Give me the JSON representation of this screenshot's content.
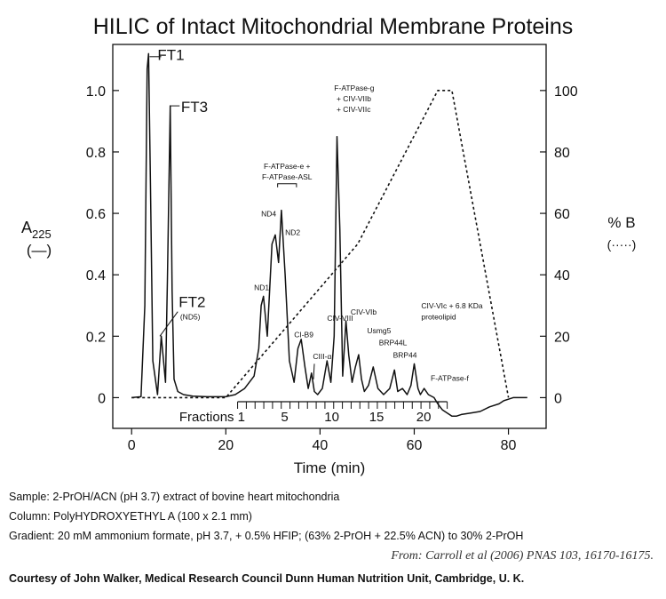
{
  "title": "HILIC of Intact Mitochondrial Membrane Proteins",
  "captions": {
    "sample": "Sample: 2-PrOH/ACN (pH 3.7) extract of bovine heart mitochondria",
    "column": "Column: PolyHYDROXYETHYL A (100 x 2.1 mm)",
    "gradient": "Gradient: 20 mM ammonium formate, pH 3.7, + 0.5% HFIP; (63% 2-PrOH + 22.5% ACN) to 30% 2-PrOH",
    "from": "From: Carroll et al (2006) PNAS 103, 16170-16175.",
    "courtesy": "Courtesy of John Walker, Medical Research Council Dunn Human Nutrition Unit, Cambridge, U. K."
  },
  "chart_data": {
    "type": "line",
    "xlabel": "Time (min)",
    "xlim": [
      -4,
      88
    ],
    "xticks": [
      0,
      20,
      40,
      60,
      80
    ],
    "ylabel_left": {
      "main": "A",
      "sub": "225",
      "paren": "(—)"
    },
    "ylim_left": [
      -0.1,
      1.15
    ],
    "yticks_left": [
      "0",
      "0.2",
      "0.4",
      "0.6",
      "0.8",
      "1.0"
    ],
    "ylabel_right": {
      "main": "% B",
      "paren": "(·····)"
    },
    "ylim_right": [
      -10,
      115
    ],
    "yticks_right": [
      "0",
      "20",
      "40",
      "60",
      "80",
      "100"
    ],
    "series": [
      {
        "name": "A225",
        "style": "solid",
        "color": "#111111",
        "x": [
          0,
          2,
          2.8,
          3.3,
          3.6,
          4.0,
          4.5,
          5.5,
          6.3,
          7.2,
          7.6,
          8.2,
          8.6,
          9.0,
          9.8,
          11,
          13,
          16,
          20,
          22,
          24,
          26,
          27,
          27.5,
          28,
          28.8,
          29.8,
          30.5,
          31.2,
          31.8,
          32.6,
          33.5,
          34.5,
          35.3,
          36,
          36.8,
          37.5,
          38.2,
          38.8,
          39.5,
          40.5,
          41.5,
          42.3,
          43,
          43.6,
          44.2,
          44.8,
          45.5,
          46.1,
          46.8,
          47.5,
          48.2,
          48.8,
          49.4,
          50.3,
          51.3,
          52.3,
          53.5,
          54.8,
          55.8,
          56.5,
          57.5,
          58.5,
          59.3,
          60,
          60.8,
          61.3,
          62.1,
          63,
          64.2,
          65,
          66,
          67,
          68,
          69,
          70,
          72,
          74,
          76,
          78,
          79,
          80,
          81,
          82,
          83,
          84
        ],
        "y": [
          0.0,
          0.003,
          0.3,
          1.07,
          1.12,
          0.7,
          0.12,
          0.01,
          0.2,
          0.05,
          0.38,
          0.95,
          0.35,
          0.06,
          0.02,
          0.01,
          0.005,
          0.003,
          0.003,
          0.01,
          0.03,
          0.07,
          0.16,
          0.3,
          0.33,
          0.2,
          0.5,
          0.53,
          0.44,
          0.61,
          0.4,
          0.12,
          0.05,
          0.16,
          0.19,
          0.1,
          0.03,
          0.08,
          0.02,
          0.01,
          0.03,
          0.12,
          0.05,
          0.2,
          0.85,
          0.55,
          0.07,
          0.25,
          0.14,
          0.05,
          0.1,
          0.14,
          0.06,
          0.02,
          0.04,
          0.1,
          0.03,
          0.01,
          0.03,
          0.09,
          0.02,
          0.03,
          0.01,
          0.04,
          0.11,
          0.03,
          0.01,
          0.03,
          0.01,
          0.0,
          -0.02,
          -0.04,
          -0.05,
          -0.06,
          -0.06,
          -0.055,
          -0.05,
          -0.045,
          -0.03,
          -0.02,
          -0.01,
          -0.005,
          0.0,
          0.0,
          0.0,
          0.0
        ]
      },
      {
        "name": "% B",
        "style": "dotted",
        "color": "#111111",
        "x": [
          0,
          20,
          48,
          65,
          68,
          80
        ],
        "y": [
          0,
          0,
          50,
          100,
          100,
          0
        ]
      }
    ],
    "annotations": [
      {
        "text": "FT1",
        "x": 5.5,
        "y": 1.1,
        "size": "large",
        "leader": [
          [
            3.8,
            1.11
          ],
          [
            6.3,
            1.11
          ]
        ]
      },
      {
        "text": "FT3",
        "x": 10.5,
        "y": 0.93,
        "size": "large",
        "leader": [
          [
            8.3,
            0.95
          ],
          [
            10.2,
            0.95
          ]
        ]
      },
      {
        "text": "FT2",
        "x": 10.0,
        "y": 0.295,
        "size": "large",
        "leader": [
          [
            6.0,
            0.2
          ],
          [
            9.8,
            0.28
          ]
        ]
      },
      {
        "text": "(ND5)",
        "x": 10.3,
        "y": 0.255,
        "size": "small"
      },
      {
        "text": "ND1",
        "x": 26.0,
        "y": 0.35,
        "size": "small"
      },
      {
        "text": "ND4",
        "x": 27.5,
        "y": 0.59,
        "size": "small"
      },
      {
        "text": "ND2",
        "x": 32.6,
        "y": 0.53,
        "size": "small"
      },
      {
        "text": "F-ATPase-e +",
        "x": 33.0,
        "y": 0.745,
        "size": "small",
        "anchor": "middle"
      },
      {
        "text": "F-ATPase-ASL",
        "x": 33.0,
        "y": 0.71,
        "size": "small",
        "anchor": "middle"
      },
      {
        "text": "CI-B9",
        "x": 34.5,
        "y": 0.196,
        "size": "small"
      },
      {
        "text": "CIII-α",
        "x": 38.5,
        "y": 0.125,
        "size": "small",
        "leader": [
          [
            38.6,
            0.06
          ],
          [
            38.8,
            0.11
          ]
        ]
      },
      {
        "text": "CIV-VIII",
        "x": 41.5,
        "y": 0.25,
        "size": "small"
      },
      {
        "text": "CIV-VIb",
        "x": 46.5,
        "y": 0.27,
        "size": "small"
      },
      {
        "text": "Usmg5",
        "x": 50.0,
        "y": 0.21,
        "size": "small"
      },
      {
        "text": "BRP44L",
        "x": 52.5,
        "y": 0.17,
        "size": "small"
      },
      {
        "text": "BRP44",
        "x": 55.5,
        "y": 0.13,
        "size": "small"
      },
      {
        "text": "F-ATPase-g",
        "x": 43.0,
        "y": 1.0,
        "size": "small"
      },
      {
        "text": "+ CIV-VIIb",
        "x": 43.5,
        "y": 0.965,
        "size": "small"
      },
      {
        "text": "+ CIV-VIIc",
        "x": 43.5,
        "y": 0.93,
        "size": "small"
      },
      {
        "text": "CIV-VIc + 6.8 KDa",
        "x": 61.5,
        "y": 0.29,
        "size": "small"
      },
      {
        "text": "proteolipid",
        "x": 61.5,
        "y": 0.255,
        "size": "small"
      },
      {
        "text": "F-ATPase-f",
        "x": 63.5,
        "y": 0.055,
        "size": "small"
      }
    ],
    "fractions": {
      "label": "Fractions",
      "numbers": [
        "1",
        "5",
        "10",
        "15",
        "20"
      ],
      "number_x": [
        23.3,
        32.5,
        42.5,
        52.0,
        62.0
      ],
      "x_start": 22.5,
      "x_end": 67.0,
      "count": 24
    }
  }
}
